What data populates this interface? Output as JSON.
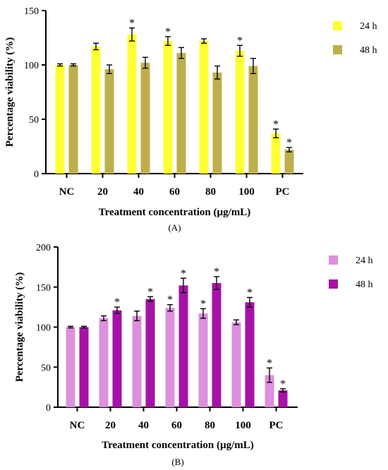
{
  "chart_data": [
    {
      "panel_label": "(A)",
      "type": "bar",
      "categories": [
        "NC",
        "20",
        "40",
        "60",
        "80",
        "100",
        "PC"
      ],
      "xlabel": "Treatment concentration (µg/mL)",
      "ylabel": "Percentage viability (%)",
      "ylim": [
        0,
        150
      ],
      "yticks": [
        0,
        50,
        100,
        150
      ],
      "legend_position": "top-right",
      "series": [
        {
          "name": "24 h",
          "color": "#ffff33",
          "values": [
            100,
            117,
            128,
            122,
            122,
            113,
            37
          ],
          "errors": [
            1,
            3,
            6,
            4,
            2,
            5,
            4
          ],
          "significant": [
            false,
            false,
            true,
            true,
            false,
            true,
            true
          ]
        },
        {
          "name": "48 h",
          "color": "#bdb04a",
          "values": [
            100,
            96,
            102,
            111,
            93,
            99,
            22
          ],
          "errors": [
            1,
            4,
            5,
            5,
            6,
            7,
            2
          ],
          "significant": [
            false,
            false,
            false,
            false,
            false,
            false,
            true
          ]
        }
      ]
    },
    {
      "panel_label": "(B)",
      "type": "bar",
      "categories": [
        "NC",
        "20",
        "40",
        "60",
        "80",
        "100",
        "PC"
      ],
      "xlabel": "Treatment concentration (µg/mL)",
      "ylabel": "Percentage viability (%)",
      "ylim": [
        0,
        200
      ],
      "yticks": [
        0,
        50,
        100,
        150,
        200
      ],
      "legend_position": "top-right",
      "series": [
        {
          "name": "24 h",
          "color": "#dd90dd",
          "values": [
            100,
            111,
            114,
            124,
            117,
            106,
            40
          ],
          "errors": [
            1,
            3,
            6,
            4,
            6,
            3,
            9
          ],
          "significant": [
            false,
            false,
            false,
            true,
            true,
            false,
            true
          ]
        },
        {
          "name": "48 h",
          "color": "#a612a6",
          "values": [
            100,
            121,
            135,
            152,
            155,
            131,
            21
          ],
          "errors": [
            1,
            4,
            3,
            9,
            8,
            6,
            2
          ],
          "significant": [
            false,
            true,
            true,
            true,
            true,
            true,
            true
          ]
        }
      ]
    }
  ]
}
